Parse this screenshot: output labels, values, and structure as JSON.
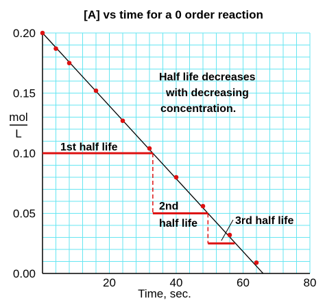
{
  "chart_data": {
    "type": "scatter",
    "title": "[A] vs time for a 0  order reaction",
    "xlabel": "Time, sec.",
    "ylabel_numerator": "mol",
    "ylabel_denominator": "L",
    "xlim": [
      0,
      80
    ],
    "ylim": [
      0,
      0.2
    ],
    "x_ticks": [
      {
        "value": 20,
        "label": "20"
      },
      {
        "value": 40,
        "label": "40"
      },
      {
        "value": 60,
        "label": "60"
      },
      {
        "value": 80,
        "label": "80"
      }
    ],
    "y_ticks": [
      {
        "value": 0,
        "label": "0.00"
      },
      {
        "value": 0.05,
        "label": "0.05"
      },
      {
        "value": 0.1,
        "label": "0.10"
      },
      {
        "value": 0.15,
        "label": "0.15"
      },
      {
        "value": 0.2,
        "label": "0.20"
      }
    ],
    "grid": true,
    "grid_minor_step_x": 4,
    "grid_minor_step_y": 0.01,
    "colors": {
      "grid": "#66e6f2",
      "points": "#dd1111",
      "line": "#000000",
      "half_life": "#dd1111"
    },
    "points": [
      {
        "x": 0,
        "y": 0.2
      },
      {
        "x": 4,
        "y": 0.187
      },
      {
        "x": 8,
        "y": 0.175
      },
      {
        "x": 16,
        "y": 0.152
      },
      {
        "x": 24,
        "y": 0.127
      },
      {
        "x": 32,
        "y": 0.104
      },
      {
        "x": 40,
        "y": 0.08
      },
      {
        "x": 48,
        "y": 0.056
      },
      {
        "x": 56,
        "y": 0.032
      },
      {
        "x": 64,
        "y": 0.009
      }
    ],
    "fit_line": [
      {
        "x": 0,
        "y": 0.2
      },
      {
        "x": 66,
        "y": 0
      }
    ],
    "half_lives": [
      {
        "label": "1st half life",
        "y": 0.1,
        "x_start": 0,
        "x_end": 33
      },
      {
        "label_lines": [
          "2nd",
          "half life"
        ],
        "y": 0.05,
        "x_start": 33,
        "x_end": 49.5
      },
      {
        "label": "3rd half life",
        "y": 0.025,
        "x_start": 49.5,
        "x_end": 57.5
      }
    ],
    "annotation": [
      "Half life decreases",
      "with decreasing",
      "concentration."
    ]
  }
}
